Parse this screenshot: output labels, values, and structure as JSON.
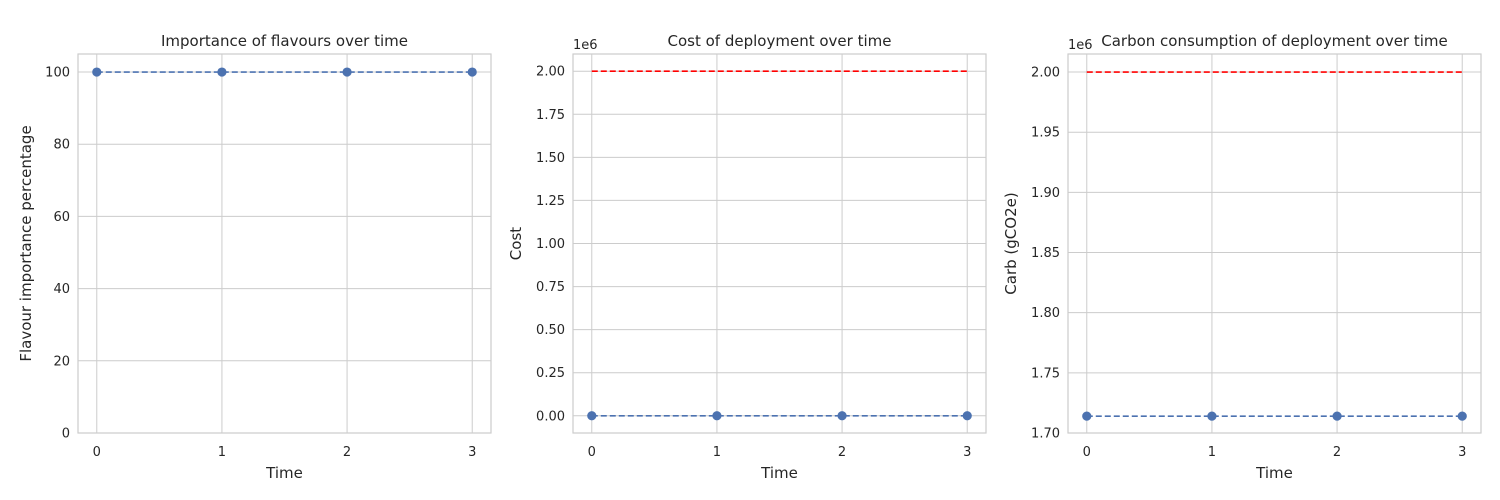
{
  "chart_data": [
    {
      "type": "line",
      "title": "Importance of flavours over time",
      "xlabel": "Time",
      "ylabel": "Flavour importance percentage",
      "x": [
        0,
        1,
        2,
        3
      ],
      "xticks": [
        "0",
        "1",
        "2",
        "3"
      ],
      "xlim": [
        -0.15,
        3.15
      ],
      "ylim": [
        0,
        105
      ],
      "yticks": [
        0,
        20,
        40,
        60,
        80,
        100
      ],
      "ytick_labels": [
        "0",
        "20",
        "40",
        "60",
        "80",
        "100"
      ],
      "offset_text": "",
      "grid": true,
      "colors": {
        "series": "#4c72b0",
        "threshold": "#ff0000"
      },
      "series": [
        {
          "values": [
            100,
            100,
            100,
            100
          ],
          "style": "dashed-with-markers"
        }
      ],
      "threshold": null
    },
    {
      "type": "line",
      "title": "Cost of deployment over time",
      "xlabel": "Time",
      "ylabel": "Cost",
      "x": [
        0,
        1,
        2,
        3
      ],
      "xticks": [
        "0",
        "1",
        "2",
        "3"
      ],
      "xlim": [
        -0.15,
        3.15
      ],
      "ylim": [
        -0.1,
        2.1
      ],
      "yticks": [
        0,
        0.25,
        0.5,
        0.75,
        1.0,
        1.25,
        1.5,
        1.75,
        2.0
      ],
      "ytick_labels": [
        "0.00",
        "0.25",
        "0.50",
        "0.75",
        "1.00",
        "1.25",
        "1.50",
        "1.75",
        "2.00"
      ],
      "offset_text": "1e6",
      "grid": true,
      "colors": {
        "series": "#4c72b0",
        "threshold": "#ff0000"
      },
      "series": [
        {
          "values": [
            0,
            0,
            0,
            0
          ],
          "style": "dashed-with-markers"
        }
      ],
      "threshold": {
        "value": 2.0,
        "style": "dashed"
      }
    },
    {
      "type": "line",
      "title": "Carbon consumption of deployment over time",
      "xlabel": "Time",
      "ylabel": "Carb (gCO2e)",
      "x": [
        0,
        1,
        2,
        3
      ],
      "xticks": [
        "0",
        "1",
        "2",
        "3"
      ],
      "xlim": [
        -0.15,
        3.15
      ],
      "ylim": [
        1.7,
        2.015
      ],
      "yticks": [
        1.7,
        1.75,
        1.8,
        1.85,
        1.9,
        1.95,
        2.0
      ],
      "ytick_labels": [
        "1.70",
        "1.75",
        "1.80",
        "1.85",
        "1.90",
        "1.95",
        "2.00"
      ],
      "offset_text": "1e6",
      "grid": true,
      "colors": {
        "series": "#4c72b0",
        "threshold": "#ff0000"
      },
      "series": [
        {
          "values": [
            1.714,
            1.714,
            1.714,
            1.714
          ],
          "style": "dashed-with-markers"
        }
      ],
      "threshold": {
        "value": 2.0,
        "style": "dashed"
      }
    }
  ]
}
